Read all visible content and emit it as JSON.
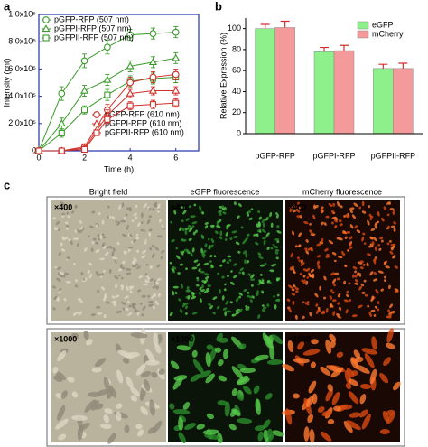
{
  "panels": [
    "a",
    "b",
    "c"
  ],
  "chart_data": [
    {
      "type": "line",
      "x": [
        0,
        1,
        2,
        3,
        4,
        5,
        6
      ],
      "xlim": [
        0,
        7
      ],
      "xticks": [
        0,
        2,
        4,
        6
      ],
      "ylim": [
        0,
        1000000
      ],
      "yticks": [
        0,
        {
          "value": 200000,
          "label": "2.0x10⁵"
        },
        {
          "value": 400000,
          "label": "4.0x10⁵"
        },
        {
          "value": 600000,
          "label": "6.0x10⁵"
        },
        {
          "value": 800000,
          "label": "8.0x10⁵"
        },
        {
          "value": 1000000,
          "label": "1.0x10⁶"
        }
      ],
      "xlabel": "Time (h)",
      "ylabel": "Intensity (cnt)",
      "series": [
        {
          "name": "pGFP-RFP (507 nm)",
          "color": "#3a9a2a",
          "marker": "circle",
          "values": [
            0,
            420000,
            660000,
            760000,
            850000,
            860000,
            870000
          ],
          "errors": [
            10000,
            50000,
            50000,
            50000,
            40000,
            40000,
            40000
          ]
        },
        {
          "name": "pGFPI-RFP (507 nm)",
          "color": "#3a9a2a",
          "marker": "triangle",
          "values": [
            0,
            200000,
            440000,
            520000,
            620000,
            650000,
            680000
          ],
          "errors": [
            10000,
            40000,
            40000,
            40000,
            40000,
            40000,
            40000
          ]
        },
        {
          "name": "pGFPII-RFP (507 nm)",
          "color": "#3a9a2a",
          "marker": "square",
          "values": [
            0,
            130000,
            300000,
            410000,
            510000,
            530000,
            540000
          ],
          "errors": [
            10000,
            30000,
            30000,
            40000,
            40000,
            40000,
            40000
          ]
        },
        {
          "name": "pGFP-RFP (610 nm)",
          "color": "#d0302a",
          "marker": "circle",
          "values": [
            0,
            0,
            30000,
            300000,
            500000,
            540000,
            560000
          ],
          "errors": [
            10000,
            10000,
            20000,
            40000,
            40000,
            40000,
            40000
          ]
        },
        {
          "name": "pGFPI-RFP (610 nm)",
          "color": "#d0302a",
          "marker": "triangle",
          "values": [
            0,
            0,
            20000,
            260000,
            420000,
            440000,
            440000
          ],
          "errors": [
            10000,
            10000,
            20000,
            40000,
            30000,
            30000,
            30000
          ]
        },
        {
          "name": "pGFPII-RFP (610 nm)",
          "color": "#d0302a",
          "marker": "square",
          "values": [
            0,
            0,
            10000,
            230000,
            330000,
            340000,
            350000
          ],
          "errors": [
            10000,
            10000,
            20000,
            30000,
            30000,
            30000,
            30000
          ]
        }
      ]
    },
    {
      "type": "bar",
      "categories": [
        "pGFP-RFP",
        "pGFPI-RFP",
        "pGFPII-RFP"
      ],
      "ylim": [
        0,
        110
      ],
      "yticks": [
        0,
        20,
        40,
        60,
        80,
        100
      ],
      "ylabel": "Relative Expression (%)",
      "legend": "upper right",
      "series": [
        {
          "name": "eGFP",
          "color": "#8ef08a",
          "values": [
            100,
            78,
            62
          ],
          "errors": [
            4,
            4,
            4
          ]
        },
        {
          "name": "mCherry",
          "color": "#f59a9a",
          "values": [
            101,
            79,
            62
          ],
          "errors": [
            6,
            5,
            5
          ]
        }
      ]
    }
  ],
  "panel_c": {
    "columns": [
      "Bright  field",
      "eGFP fluorescence",
      "mCherry fluorescence"
    ],
    "magnifications": [
      [
        "×400",
        "×400",
        "×400"
      ],
      [
        "×1000",
        "×1000",
        "×1000"
      ]
    ]
  }
}
